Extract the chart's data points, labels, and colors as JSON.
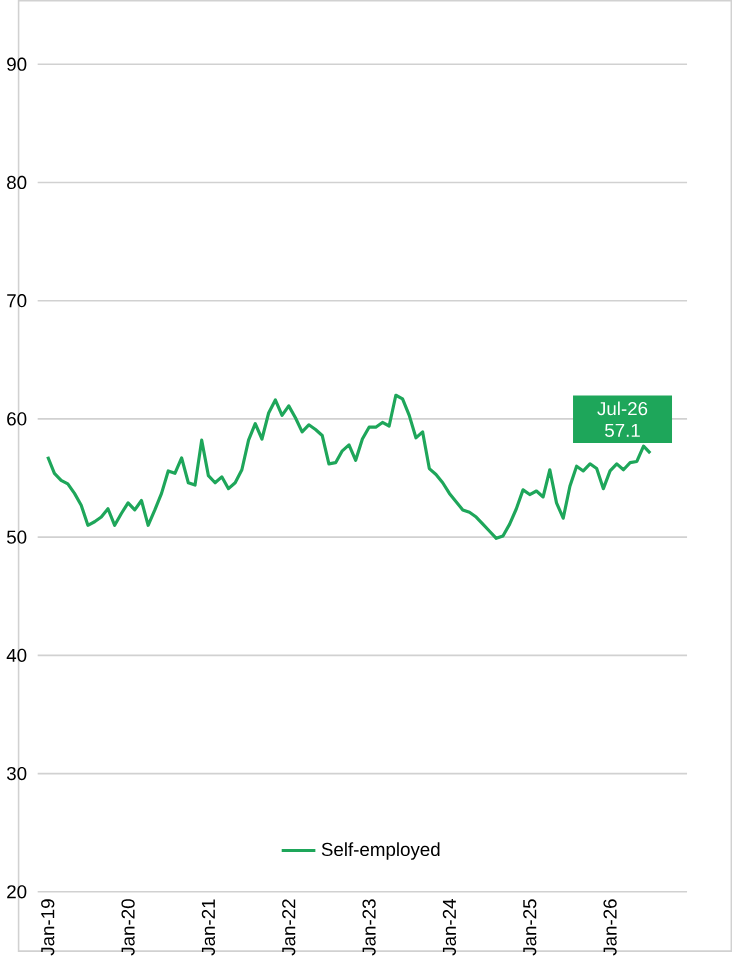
{
  "chart_data": {
    "type": "line",
    "categories": [
      "Jan-19",
      null,
      null,
      null,
      null,
      null,
      null,
      null,
      null,
      null,
      null,
      null,
      "Jan-20",
      null,
      null,
      null,
      null,
      null,
      null,
      null,
      null,
      null,
      null,
      null,
      "Jan-21",
      null,
      null,
      null,
      null,
      null,
      null,
      null,
      null,
      null,
      null,
      null,
      "Jan-22",
      null,
      null,
      null,
      null,
      null,
      null,
      null,
      null,
      null,
      null,
      null,
      "Jan-23",
      null,
      null,
      null,
      null,
      null,
      null,
      null,
      null,
      null,
      null,
      null,
      "Jan-24",
      null,
      null,
      null,
      null,
      null,
      null,
      null,
      null,
      null,
      null,
      null,
      "Jan-25",
      null,
      null,
      null,
      null,
      null,
      null,
      null,
      null,
      null,
      null,
      null,
      "Jan-26",
      null,
      null,
      null,
      null,
      null,
      null
    ],
    "series": [
      {
        "name": "Self-employed",
        "color": "#1ea65a",
        "values": [
          56.8,
          55.4,
          54.8,
          54.5,
          53.7,
          52.7,
          51.0,
          51.3,
          51.7,
          52.4,
          51.0,
          52.0,
          52.9,
          52.3,
          53.1,
          51.0,
          52.3,
          53.7,
          55.6,
          55.4,
          56.7,
          54.6,
          54.4,
          58.2,
          55.2,
          54.6,
          55.1,
          54.1,
          54.6,
          55.7,
          58.2,
          59.6,
          58.3,
          60.5,
          61.6,
          60.3,
          61.1,
          60.1,
          58.9,
          59.5,
          59.1,
          58.6,
          56.2,
          56.3,
          57.3,
          57.8,
          56.5,
          58.3,
          59.3,
          59.3,
          59.7,
          59.4,
          62.0,
          61.7,
          60.3,
          58.4,
          58.9,
          55.8,
          55.3,
          54.6,
          53.7,
          53.0,
          52.3,
          52.1,
          51.7,
          51.1,
          50.5,
          49.9,
          50.1,
          51.1,
          52.4,
          54.0,
          53.6,
          53.9,
          53.4,
          55.7,
          52.9,
          51.6,
          54.3,
          56.0,
          55.6,
          56.2,
          55.8,
          54.1,
          55.6,
          56.2,
          55.7,
          56.3,
          56.4,
          57.7,
          57.1
        ]
      }
    ],
    "ylim": [
      20,
      90
    ],
    "yticks": [
      20,
      30,
      40,
      50,
      60,
      70,
      80,
      90
    ],
    "grid": "y",
    "legend": "bottom",
    "annotations": [
      "Jul-26 57.1"
    ]
  }
}
